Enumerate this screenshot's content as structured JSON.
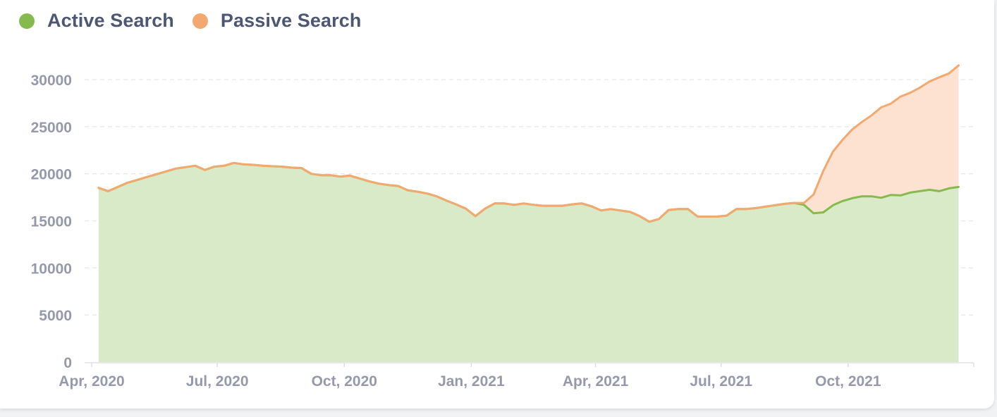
{
  "colors": {
    "active_line": "#84bb4c",
    "active_fill": "#d9eac8",
    "passive_line": "#f2a86f",
    "passive_fill": "#fde2d1",
    "grid": "#e6e8ec",
    "axis": "#d9dbe0"
  },
  "legend": [
    {
      "label": "Active Search",
      "color": "#84bb4c"
    },
    {
      "label": "Passive Search",
      "color": "#f2a86f"
    }
  ],
  "chart_data": {
    "type": "area",
    "stacked": true,
    "legend_position": "top-left",
    "grid": true,
    "ylim": [
      0,
      30000
    ],
    "yticks": [
      0,
      5000,
      10000,
      15000,
      20000,
      25000,
      30000
    ],
    "xlim": [
      "2020-04-01",
      "2021-12-31"
    ],
    "xticks": [
      {
        "date": "2020-04-01",
        "label": "Apr, 2020"
      },
      {
        "date": "2020-07-01",
        "label": "Jul, 2020"
      },
      {
        "date": "2020-10-01",
        "label": "Oct, 2020"
      },
      {
        "date": "2021-01-01",
        "label": "Jan, 2021"
      },
      {
        "date": "2021-04-01",
        "label": "Apr, 2021"
      },
      {
        "date": "2021-07-01",
        "label": "Jul, 2021"
      },
      {
        "date": "2021-10-01",
        "label": "Oct, 2021"
      }
    ],
    "x": [
      "2020-04-06",
      "2020-04-13",
      "2020-04-20",
      "2020-04-27",
      "2020-05-04",
      "2020-05-11",
      "2020-05-18",
      "2020-05-25",
      "2020-06-01",
      "2020-06-08",
      "2020-06-15",
      "2020-06-22",
      "2020-06-29",
      "2020-07-06",
      "2020-07-13",
      "2020-07-20",
      "2020-07-27",
      "2020-08-03",
      "2020-08-10",
      "2020-08-17",
      "2020-08-24",
      "2020-08-31",
      "2020-09-07",
      "2020-09-14",
      "2020-09-21",
      "2020-09-28",
      "2020-10-05",
      "2020-10-12",
      "2020-10-19",
      "2020-10-26",
      "2020-11-02",
      "2020-11-09",
      "2020-11-16",
      "2020-11-23",
      "2020-11-30",
      "2020-12-07",
      "2020-12-14",
      "2020-12-21",
      "2020-12-28",
      "2021-01-04",
      "2021-01-11",
      "2021-01-18",
      "2021-01-25",
      "2021-02-01",
      "2021-02-08",
      "2021-02-15",
      "2021-02-22",
      "2021-03-01",
      "2021-03-08",
      "2021-03-15",
      "2021-03-22",
      "2021-03-29",
      "2021-04-05",
      "2021-04-12",
      "2021-04-19",
      "2021-04-26",
      "2021-05-03",
      "2021-05-10",
      "2021-05-17",
      "2021-05-24",
      "2021-05-31",
      "2021-06-07",
      "2021-06-14",
      "2021-06-21",
      "2021-06-28",
      "2021-07-05",
      "2021-07-12",
      "2021-07-19",
      "2021-07-26",
      "2021-08-02",
      "2021-08-09",
      "2021-08-16",
      "2021-08-23",
      "2021-08-30",
      "2021-09-06",
      "2021-09-13",
      "2021-09-20",
      "2021-09-27",
      "2021-10-04",
      "2021-10-11",
      "2021-10-18",
      "2021-10-25",
      "2021-11-01",
      "2021-11-08",
      "2021-11-15",
      "2021-11-22",
      "2021-11-29",
      "2021-12-06",
      "2021-12-13",
      "2021-12-20"
    ],
    "series": [
      {
        "name": "Active Search",
        "values": [
          18500,
          18150,
          18600,
          19050,
          19350,
          19650,
          19950,
          20250,
          20550,
          20700,
          20850,
          20400,
          20750,
          20850,
          21150,
          21000,
          20950,
          20850,
          20800,
          20750,
          20650,
          20600,
          20000,
          19850,
          19850,
          19700,
          19800,
          19500,
          19200,
          18950,
          18800,
          18700,
          18250,
          18100,
          17900,
          17600,
          17150,
          16750,
          16300,
          15500,
          16300,
          16850,
          16850,
          16700,
          16850,
          16700,
          16600,
          16600,
          16600,
          16750,
          16850,
          16550,
          16100,
          16250,
          16100,
          15950,
          15500,
          14900,
          15200,
          16150,
          16250,
          16250,
          15450,
          15450,
          15450,
          15550,
          16250,
          16250,
          16350,
          16500,
          16650,
          16800,
          16900,
          16700,
          15800,
          15900,
          16650,
          17100,
          17400,
          17600,
          17600,
          17450,
          17750,
          17700,
          18000,
          18150,
          18300,
          18150,
          18450,
          18600
        ]
      },
      {
        "name": "Passive Search",
        "values": [
          0,
          0,
          0,
          0,
          0,
          0,
          0,
          0,
          0,
          0,
          0,
          0,
          0,
          0,
          0,
          0,
          0,
          0,
          0,
          0,
          0,
          0,
          0,
          0,
          0,
          0,
          0,
          0,
          0,
          0,
          0,
          0,
          0,
          0,
          0,
          0,
          0,
          0,
          0,
          0,
          0,
          0,
          0,
          0,
          0,
          0,
          0,
          0,
          0,
          0,
          0,
          0,
          0,
          0,
          0,
          0,
          0,
          0,
          0,
          0,
          0,
          0,
          0,
          0,
          0,
          0,
          0,
          0,
          0,
          0,
          0,
          0,
          0,
          200,
          2000,
          4400,
          5700,
          6500,
          7300,
          7900,
          8600,
          9600,
          9700,
          10500,
          10600,
          11000,
          11500,
          12100,
          12200,
          12900
        ]
      }
    ]
  }
}
